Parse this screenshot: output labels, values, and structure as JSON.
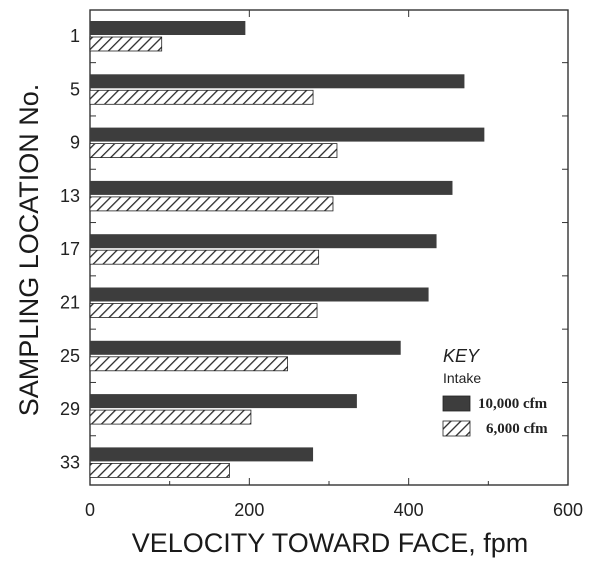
{
  "chart_data": {
    "type": "bar",
    "orientation": "horizontal",
    "title": "",
    "xlabel": "VELOCITY TOWARD FACE, fpm",
    "ylabel": "SAMPLING LOCATION No.",
    "xlim": [
      0,
      600
    ],
    "x_ticks": [
      "0",
      "200",
      "400",
      "600"
    ],
    "categories": [
      "1",
      "5",
      "9",
      "13",
      "17",
      "21",
      "25",
      "29",
      "33"
    ],
    "series": [
      {
        "name": "10,000 cfm",
        "fill": "solid",
        "color": "#3d3d3d",
        "values": [
          195,
          470,
          495,
          455,
          435,
          425,
          390,
          335,
          280
        ]
      },
      {
        "name": "6,000 cfm",
        "fill": "hatched",
        "color": "#2a2a2a",
        "values": [
          90,
          280,
          310,
          305,
          287,
          285,
          248,
          202,
          175
        ]
      }
    ],
    "legend": {
      "title": "KEY",
      "subtitle": "Intake",
      "placement": "bottom-right"
    },
    "grid": false
  }
}
